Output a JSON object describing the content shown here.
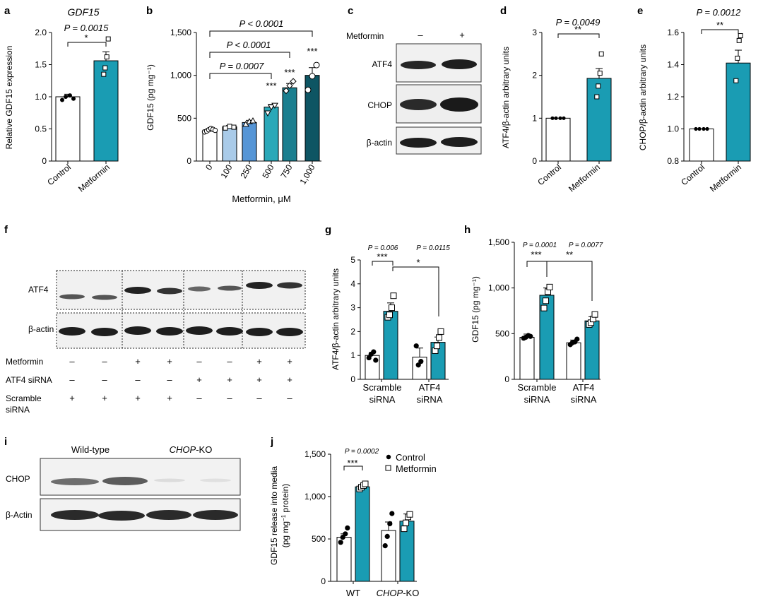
{
  "colors": {
    "teal": "#1a9cb3",
    "b_100": "#a9cbe9",
    "b_250": "#5595d6",
    "b_500": "#2aa8b8",
    "b_750": "#1b7f8f",
    "b_1000": "#0e5563",
    "white": "#ffffff",
    "blot_bg": "#efefef",
    "band": "#1e1e1e"
  },
  "panels": {
    "a": {
      "letter": "a",
      "title": "GDF15",
      "p": "P = 0.0015",
      "star": "*"
    },
    "b": {
      "letter": "b",
      "p1": "P < 0.0001",
      "p2": "P < 0.0001",
      "p3": "P = 0.0007",
      "stars": [
        "***",
        "***",
        "***"
      ]
    },
    "c": {
      "letter": "c",
      "treatment": "Metformin",
      "signs": [
        "–",
        "+"
      ],
      "bands": [
        "ATF4",
        "CHOP",
        "β-actin"
      ]
    },
    "d": {
      "letter": "d",
      "p": "P = 0.0049",
      "star": "**"
    },
    "e": {
      "letter": "e",
      "p": "P = 0.0012",
      "star": "**"
    },
    "f": {
      "letter": "f",
      "bands": [
        "ATF4",
        "β-actin"
      ],
      "rows": [
        {
          "label": "Metformin",
          "signs": [
            "–",
            "–",
            "+",
            "+",
            "–",
            "–",
            "+",
            "+"
          ]
        },
        {
          "label": "ATF4 siRNA",
          "signs": [
            "–",
            "–",
            "–",
            "–",
            "+",
            "+",
            "+",
            "+"
          ]
        },
        {
          "label": "Scramble",
          "label2": "siRNA",
          "signs": [
            "+",
            "+",
            "+",
            "+",
            "–",
            "–",
            "–",
            "–"
          ]
        }
      ]
    },
    "g": {
      "letter": "g",
      "p1": "P = 0.006",
      "p2": "P = 0.0115",
      "s1": "***",
      "s2": "*"
    },
    "h": {
      "letter": "h",
      "p1": "P = 0.0001",
      "p2": "P = 0.0077",
      "s1": "***",
      "s2": "**"
    },
    "i": {
      "letter": "i",
      "wt": "Wild-type",
      "ko": "CHOP",
      "ko_suffix": "-KO",
      "bands": [
        "CHOP",
        "β-Actin"
      ]
    },
    "j": {
      "letter": "j",
      "p": "P = 0.0002",
      "star": "***",
      "legend": [
        "Control",
        "Metformin"
      ]
    }
  },
  "chart_data": [
    {
      "id": "a",
      "type": "bar",
      "title": "GDF15",
      "xlabel": "",
      "ylabel": "Relative GDF15 expression",
      "categories": [
        "Control",
        "Metformin"
      ],
      "values": [
        1.0,
        1.56
      ],
      "errors": [
        0.04,
        0.14
      ],
      "ylim": [
        0,
        2.0
      ],
      "yticks": [
        "0",
        "0.5",
        "1.0",
        "1.5",
        "2.0"
      ],
      "points": [
        [
          0.95,
          1.0,
          1.02,
          0.97
        ],
        [
          1.35,
          1.45,
          1.62,
          1.9
        ]
      ]
    },
    {
      "id": "b",
      "type": "bar",
      "xlabel": "Metformin, μM",
      "ylabel": "GDF15 (pg mg⁻¹)",
      "categories": [
        "0",
        "100",
        "250",
        "500",
        "750",
        "1,000"
      ],
      "values": [
        360,
        400,
        450,
        630,
        855,
        1000
      ],
      "errors": [
        20,
        15,
        25,
        30,
        50,
        90
      ],
      "ylim": [
        0,
        1500
      ],
      "yticks": [
        "0",
        "500",
        "1,000",
        "1,500"
      ]
    },
    {
      "id": "d",
      "type": "bar",
      "xlabel": "",
      "ylabel": "ATF4/β-actin arbitrary units",
      "categories": [
        "Control",
        "Metformin"
      ],
      "values": [
        1.0,
        1.93
      ],
      "errors": [
        0.0,
        0.23
      ],
      "ylim": [
        0,
        3
      ],
      "yticks": [
        "0",
        "1",
        "2",
        "3"
      ],
      "points": [
        [
          1.0,
          1.0,
          1.0,
          1.0
        ],
        [
          1.5,
          1.75,
          2.05,
          2.5
        ]
      ]
    },
    {
      "id": "e",
      "type": "bar",
      "xlabel": "",
      "ylabel": "CHOP/β-actin arbitrary units",
      "categories": [
        "Control",
        "Metformin"
      ],
      "values": [
        1.0,
        1.41
      ],
      "errors": [
        0.0,
        0.08
      ],
      "ylim": [
        0.8,
        1.6
      ],
      "yticks": [
        "0.8",
        "1.0",
        "1.2",
        "1.4",
        "1.6"
      ],
      "points": [
        [
          1.0,
          1.0,
          1.0,
          1.0
        ],
        [
          1.3,
          1.44,
          1.55,
          1.58
        ]
      ]
    },
    {
      "id": "g",
      "type": "bar",
      "xlabel": "",
      "ylabel": "ATF4/β-actin arbitrary units",
      "categories": [
        "Scramble siRNA",
        "ATF4 siRNA"
      ],
      "series": [
        {
          "values": [
            1.0,
            0.93
          ],
          "errors": [
            0.12,
            0.38
          ]
        },
        {
          "values": [
            2.85,
            1.55
          ],
          "errors": [
            0.35,
            0.22
          ]
        }
      ],
      "ylim": [
        0,
        5
      ],
      "yticks": [
        "0",
        "1",
        "2",
        "3",
        "4",
        "5"
      ]
    },
    {
      "id": "h",
      "type": "bar",
      "xlabel": "",
      "ylabel": "GDF15 (pg mg⁻¹)",
      "categories": [
        "Scramble siRNA",
        "ATF4 siRNA"
      ],
      "series": [
        {
          "values": [
            460,
            400
          ],
          "errors": [
            35,
            30
          ]
        },
        {
          "values": [
            920,
            640
          ],
          "errors": [
            80,
            45
          ]
        }
      ],
      "ylim": [
        0,
        1500
      ],
      "yticks": [
        "0",
        "500",
        "1,000",
        "1,500"
      ]
    },
    {
      "id": "j",
      "type": "bar",
      "xlabel": "",
      "ylabel": "GDF15 release into media",
      "ylabel2": "(pg mg⁻¹ protein)",
      "categories": [
        "WT",
        "CHOP-KO"
      ],
      "series": [
        {
          "name": "Control",
          "values": [
            520,
            600
          ],
          "errors": [
            40,
            100
          ]
        },
        {
          "name": "Metformin",
          "values": [
            1115,
            710
          ],
          "errors": [
            25,
            85
          ]
        }
      ],
      "ylim": [
        0,
        1500
      ],
      "yticks": [
        "0",
        "500",
        "1,000",
        "1,500"
      ]
    }
  ]
}
